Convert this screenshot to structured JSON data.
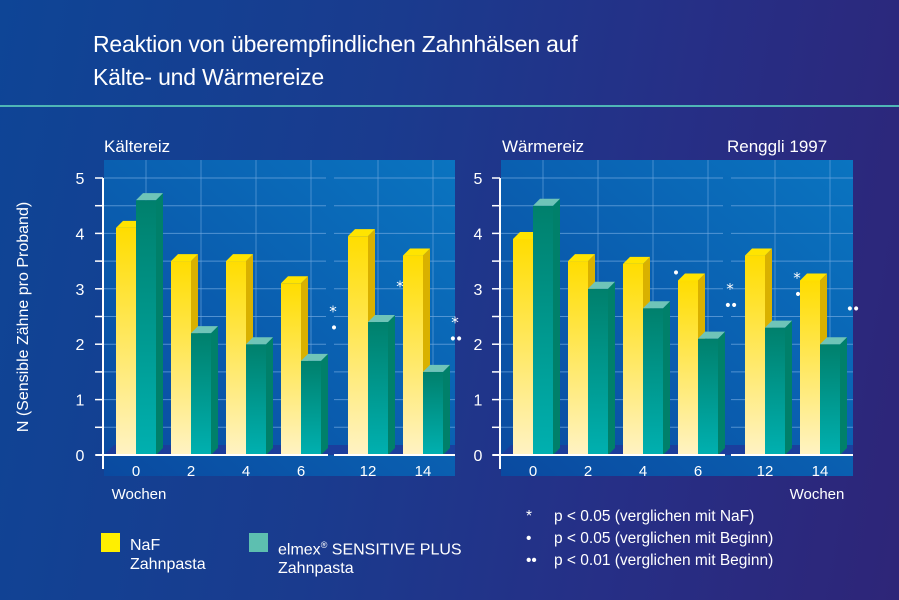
{
  "title_line1": "Reaktion von überempfindlichen Zahnhälsen auf",
  "title_line2": "Kälte- und Wärmereize",
  "source": "Renggli 1997",
  "y_axis_title": "N (Sensible Zähne pro Proband)",
  "x_unit_label": "Wochen",
  "legend": {
    "naf_line1": "NaF",
    "naf_line2": "Zahnpasta",
    "elmex_brand": "elmex",
    "elmex_reg": "®",
    "elmex_rest": " SENSITIVE PLUS",
    "elmex_line2": "Zahnpasta"
  },
  "significance": [
    {
      "symbol": "*",
      "text": "p < 0.05 (verglichen mit NaF)"
    },
    {
      "symbol": "•",
      "text": "p < 0.05 (verglichen mit Beginn)"
    },
    {
      "symbol": "••",
      "text": "p < 0.01 (verglichen mit Beginn)"
    }
  ],
  "colors": {
    "naf": "#ffe000",
    "elmex": "#00a99d",
    "legend_naf": "#ffef00",
    "legend_elmex": "#5dbfb0",
    "plot_bg": "#0a5fb0",
    "rule": "#4fb6b6"
  },
  "chart_data": [
    {
      "type": "bar",
      "title": "Kältereiz",
      "xlabel": "Wochen",
      "ylabel": "N (Sensible Zähne pro Proband)",
      "ylim": [
        0,
        5
      ],
      "yticks": [
        "0",
        "1",
        "2",
        "3",
        "4",
        "5"
      ],
      "grid": true,
      "categories": [
        "0",
        "2",
        "4",
        "6",
        "12",
        "14"
      ],
      "series": [
        {
          "name": "NaF Zahnpasta",
          "values": [
            4.1,
            3.5,
            3.5,
            3.1,
            3.95,
            3.6
          ]
        },
        {
          "name": "elmex SENSITIVE PLUS Zahnpasta",
          "values": [
            4.6,
            2.2,
            2.0,
            1.7,
            2.4,
            1.5
          ]
        }
      ],
      "annotations": [
        "",
        "",
        "",
        "*•",
        "*",
        "*••"
      ]
    },
    {
      "type": "bar",
      "title": "Wärmereiz",
      "xlabel": "Wochen",
      "ylabel": "N (Sensible Zähne pro Proband)",
      "ylim": [
        0,
        5
      ],
      "yticks": [
        "0",
        "1",
        "2",
        "3",
        "4",
        "5"
      ],
      "grid": true,
      "categories": [
        "0",
        "2",
        "4",
        "6",
        "12",
        "14"
      ],
      "series": [
        {
          "name": "NaF Zahnpasta",
          "values": [
            3.9,
            3.5,
            3.45,
            3.15,
            3.6,
            3.15
          ]
        },
        {
          "name": "elmex SENSITIVE PLUS Zahnpasta",
          "values": [
            4.5,
            3.0,
            2.65,
            2.1,
            2.3,
            2.0
          ]
        }
      ],
      "annotations": [
        "",
        "",
        "•",
        "*••",
        "*•",
        "••"
      ]
    }
  ]
}
